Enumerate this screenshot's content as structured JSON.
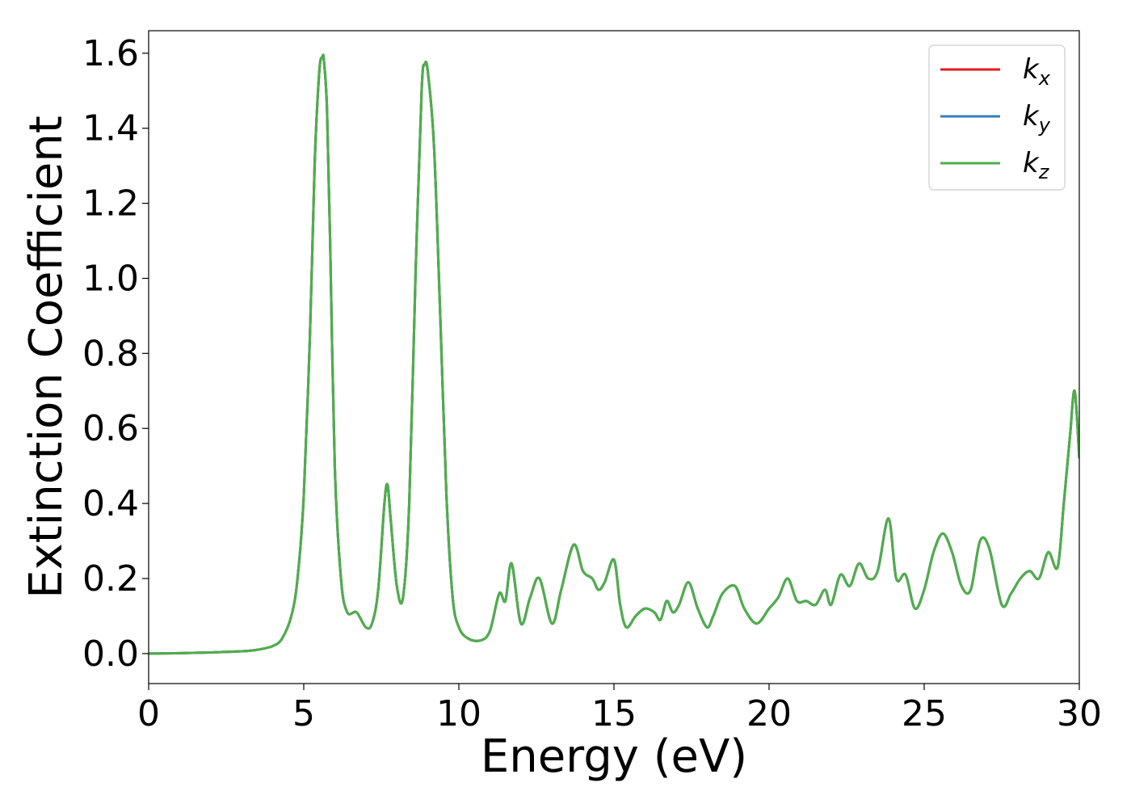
{
  "chart_data": {
    "type": "line",
    "xlabel": "Energy (eV)",
    "ylabel": "Extinction Coefficient",
    "xlim": [
      0,
      30
    ],
    "ylim": [
      -0.08,
      1.66
    ],
    "xticks": [
      0,
      5,
      10,
      15,
      20,
      25,
      30
    ],
    "yticks": [
      0.0,
      0.2,
      0.4,
      0.6,
      0.8,
      1.0,
      1.2,
      1.4,
      1.6
    ],
    "xtick_labels": [
      "0",
      "5",
      "10",
      "15",
      "20",
      "25",
      "30"
    ],
    "ytick_labels": [
      "0.0",
      "0.2",
      "0.4",
      "0.6",
      "0.8",
      "1.0",
      "1.2",
      "1.4",
      "1.6"
    ],
    "grid": false,
    "legend_position": "top-right",
    "x": [
      0,
      1,
      2,
      3,
      3.5,
      4,
      4.3,
      4.6,
      4.8,
      5.0,
      5.2,
      5.35,
      5.5,
      5.6,
      5.65,
      5.75,
      5.85,
      6.0,
      6.2,
      6.4,
      6.7,
      7.0,
      7.2,
      7.4,
      7.6,
      7.7,
      7.8,
      8.0,
      8.2,
      8.4,
      8.6,
      8.8,
      8.9,
      9.0,
      9.2,
      9.4,
      9.6,
      9.8,
      10.0,
      10.3,
      10.7,
      11.0,
      11.3,
      11.5,
      11.7,
      12.0,
      12.3,
      12.6,
      13.0,
      13.3,
      13.7,
      14.0,
      14.3,
      14.5,
      14.7,
      15.0,
      15.2,
      15.4,
      15.7,
      16.0,
      16.3,
      16.5,
      16.7,
      16.9,
      17.1,
      17.4,
      17.7,
      18.0,
      18.2,
      18.5,
      18.9,
      19.2,
      19.6,
      20.0,
      20.3,
      20.6,
      20.9,
      21.2,
      21.5,
      21.8,
      22.0,
      22.3,
      22.6,
      22.9,
      23.2,
      23.5,
      23.85,
      24.1,
      24.4,
      24.7,
      25.0,
      25.3,
      25.6,
      25.9,
      26.2,
      26.5,
      26.8,
      27.1,
      27.5,
      27.8,
      28.1,
      28.4,
      28.7,
      29.0,
      29.3,
      29.5,
      29.7,
      29.85,
      30.0
    ],
    "series": [
      {
        "name": "k_x",
        "color": "#e41a1c",
        "values": [
          0.0,
          0.001,
          0.003,
          0.006,
          0.01,
          0.02,
          0.04,
          0.1,
          0.2,
          0.42,
          0.85,
          1.3,
          1.55,
          1.59,
          1.58,
          1.45,
          1.1,
          0.5,
          0.2,
          0.11,
          0.11,
          0.07,
          0.08,
          0.17,
          0.4,
          0.45,
          0.36,
          0.18,
          0.15,
          0.4,
          1.0,
          1.5,
          1.57,
          1.55,
          1.35,
          0.9,
          0.42,
          0.15,
          0.07,
          0.04,
          0.035,
          0.06,
          0.16,
          0.14,
          0.24,
          0.08,
          0.15,
          0.2,
          0.08,
          0.17,
          0.29,
          0.22,
          0.2,
          0.17,
          0.19,
          0.25,
          0.13,
          0.07,
          0.1,
          0.12,
          0.11,
          0.09,
          0.14,
          0.11,
          0.13,
          0.19,
          0.12,
          0.07,
          0.1,
          0.16,
          0.18,
          0.12,
          0.08,
          0.12,
          0.15,
          0.2,
          0.14,
          0.14,
          0.13,
          0.17,
          0.13,
          0.21,
          0.18,
          0.24,
          0.2,
          0.22,
          0.36,
          0.2,
          0.21,
          0.12,
          0.17,
          0.27,
          0.32,
          0.27,
          0.18,
          0.17,
          0.3,
          0.28,
          0.13,
          0.16,
          0.2,
          0.22,
          0.2,
          0.27,
          0.23,
          0.4,
          0.58,
          0.7,
          0.52
        ]
      },
      {
        "name": "k_y",
        "color": "#377eb8",
        "values": [
          0.0,
          0.001,
          0.003,
          0.006,
          0.01,
          0.02,
          0.04,
          0.1,
          0.2,
          0.42,
          0.85,
          1.3,
          1.55,
          1.59,
          1.58,
          1.45,
          1.1,
          0.5,
          0.2,
          0.11,
          0.11,
          0.07,
          0.08,
          0.17,
          0.4,
          0.45,
          0.36,
          0.18,
          0.15,
          0.4,
          1.0,
          1.5,
          1.57,
          1.55,
          1.35,
          0.9,
          0.42,
          0.15,
          0.07,
          0.04,
          0.035,
          0.06,
          0.16,
          0.14,
          0.24,
          0.08,
          0.15,
          0.2,
          0.08,
          0.17,
          0.29,
          0.22,
          0.2,
          0.17,
          0.19,
          0.25,
          0.13,
          0.07,
          0.1,
          0.12,
          0.11,
          0.09,
          0.14,
          0.11,
          0.13,
          0.19,
          0.12,
          0.07,
          0.1,
          0.16,
          0.18,
          0.12,
          0.08,
          0.12,
          0.15,
          0.2,
          0.14,
          0.14,
          0.13,
          0.17,
          0.13,
          0.21,
          0.18,
          0.24,
          0.2,
          0.22,
          0.36,
          0.2,
          0.21,
          0.12,
          0.17,
          0.27,
          0.32,
          0.27,
          0.18,
          0.17,
          0.3,
          0.28,
          0.13,
          0.16,
          0.2,
          0.22,
          0.2,
          0.27,
          0.23,
          0.4,
          0.58,
          0.7,
          0.52
        ]
      },
      {
        "name": "k_z",
        "color": "#4daf4a",
        "values": [
          0.0,
          0.001,
          0.003,
          0.006,
          0.01,
          0.02,
          0.04,
          0.1,
          0.2,
          0.42,
          0.85,
          1.3,
          1.55,
          1.59,
          1.58,
          1.45,
          1.1,
          0.5,
          0.2,
          0.11,
          0.11,
          0.07,
          0.08,
          0.17,
          0.4,
          0.45,
          0.36,
          0.18,
          0.15,
          0.4,
          1.0,
          1.5,
          1.57,
          1.55,
          1.35,
          0.9,
          0.42,
          0.15,
          0.07,
          0.04,
          0.035,
          0.06,
          0.16,
          0.14,
          0.24,
          0.08,
          0.15,
          0.2,
          0.08,
          0.17,
          0.29,
          0.22,
          0.2,
          0.17,
          0.19,
          0.25,
          0.13,
          0.07,
          0.1,
          0.12,
          0.11,
          0.09,
          0.14,
          0.11,
          0.13,
          0.19,
          0.12,
          0.07,
          0.1,
          0.16,
          0.18,
          0.12,
          0.08,
          0.12,
          0.15,
          0.2,
          0.14,
          0.14,
          0.13,
          0.17,
          0.13,
          0.21,
          0.18,
          0.24,
          0.2,
          0.22,
          0.36,
          0.2,
          0.21,
          0.12,
          0.17,
          0.27,
          0.32,
          0.27,
          0.18,
          0.17,
          0.3,
          0.28,
          0.13,
          0.16,
          0.2,
          0.22,
          0.2,
          0.27,
          0.23,
          0.4,
          0.58,
          0.7,
          0.52
        ]
      }
    ],
    "legend": [
      {
        "base": "k",
        "sub": "x"
      },
      {
        "base": "k",
        "sub": "y"
      },
      {
        "base": "k",
        "sub": "z"
      }
    ]
  }
}
